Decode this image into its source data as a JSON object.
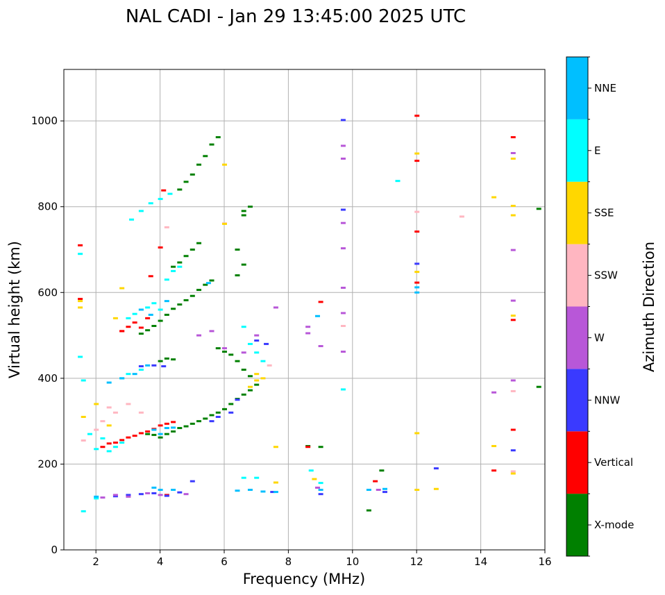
{
  "chart_data": {
    "type": "scatter",
    "title": "NAL CADI - Jan 29 13:45:00 2025 UTC",
    "xlabel": "Frequency (MHz)",
    "ylabel": "Virtual height (km)",
    "xlim": [
      1,
      16
    ],
    "ylim": [
      0,
      1120
    ],
    "xticks": [
      2,
      4,
      6,
      8,
      10,
      12,
      14,
      16
    ],
    "yticks": [
      0,
      200,
      400,
      600,
      800,
      1000
    ],
    "grid": true,
    "colorbar": {
      "title": "Azimuth Direction",
      "categories": [
        "X-mode",
        "Vertical",
        "NNW",
        "W",
        "SSW",
        "SSE",
        "E",
        "NNE"
      ],
      "colors": [
        "#008000",
        "#ff0000",
        "#3a3aff",
        "#b857d8",
        "#ffb6c1",
        "#ffd700",
        "#00ffff",
        "#00bfff"
      ]
    },
    "series": [
      {
        "name": "X-mode",
        "points": [
          [
            3.6,
            270
          ],
          [
            3.8,
            268
          ],
          [
            4.0,
            262
          ],
          [
            4.2,
            270
          ],
          [
            4.4,
            276
          ],
          [
            4.6,
            284
          ],
          [
            4.8,
            288
          ],
          [
            5.0,
            294
          ],
          [
            5.2,
            300
          ],
          [
            5.4,
            306
          ],
          [
            5.6,
            314
          ],
          [
            5.8,
            320
          ],
          [
            6.0,
            328
          ],
          [
            6.2,
            340
          ],
          [
            6.4,
            352
          ],
          [
            6.6,
            362
          ],
          [
            6.8,
            372
          ],
          [
            7.0,
            385
          ],
          [
            3.4,
            504
          ],
          [
            3.6,
            512
          ],
          [
            3.8,
            522
          ],
          [
            4.0,
            534
          ],
          [
            4.2,
            548
          ],
          [
            4.4,
            562
          ],
          [
            4.6,
            572
          ],
          [
            4.8,
            582
          ],
          [
            5.0,
            592
          ],
          [
            5.2,
            606
          ],
          [
            5.4,
            618
          ],
          [
            5.6,
            628
          ],
          [
            4.0,
            440
          ],
          [
            4.2,
            446
          ],
          [
            4.4,
            444
          ],
          [
            4.4,
            660
          ],
          [
            4.6,
            670
          ],
          [
            4.8,
            685
          ],
          [
            5.0,
            700
          ],
          [
            5.2,
            715
          ],
          [
            4.6,
            840
          ],
          [
            4.8,
            858
          ],
          [
            5.0,
            875
          ],
          [
            5.2,
            898
          ],
          [
            5.4,
            918
          ],
          [
            5.6,
            945
          ],
          [
            5.8,
            962
          ],
          [
            5.8,
            470
          ],
          [
            6.0,
            462
          ],
          [
            6.2,
            455
          ],
          [
            6.4,
            440
          ],
          [
            6.6,
            420
          ],
          [
            6.8,
            405
          ],
          [
            6.4,
            640
          ],
          [
            6.4,
            700
          ],
          [
            6.6,
            780
          ],
          [
            6.6,
            790
          ],
          [
            6.8,
            800
          ],
          [
            6.6,
            665
          ],
          [
            15.8,
            795
          ],
          [
            15.8,
            380
          ],
          [
            10.5,
            92
          ],
          [
            10.9,
            185
          ],
          [
            9.0,
            240
          ],
          [
            8.6,
            242
          ]
        ]
      },
      {
        "name": "Vertical",
        "points": [
          [
            2.2,
            240
          ],
          [
            2.4,
            248
          ],
          [
            2.6,
            250
          ],
          [
            2.8,
            256
          ],
          [
            3.0,
            262
          ],
          [
            3.2,
            266
          ],
          [
            3.4,
            272
          ],
          [
            3.6,
            276
          ],
          [
            3.8,
            282
          ],
          [
            4.0,
            290
          ],
          [
            4.2,
            294
          ],
          [
            4.4,
            298
          ],
          [
            2.8,
            510
          ],
          [
            3.0,
            520
          ],
          [
            3.2,
            530
          ],
          [
            3.4,
            518
          ],
          [
            3.6,
            540
          ],
          [
            1.5,
            585
          ],
          [
            1.5,
            710
          ],
          [
            3.7,
            638
          ],
          [
            4.0,
            705
          ],
          [
            4.1,
            838
          ],
          [
            8.6,
            240
          ],
          [
            9.0,
            578
          ],
          [
            12.0,
            1012
          ],
          [
            12.0,
            907
          ],
          [
            12.0,
            742
          ],
          [
            12.0,
            623
          ],
          [
            15.0,
            962
          ],
          [
            15.0,
            536
          ],
          [
            15.0,
            280
          ],
          [
            14.4,
            185
          ],
          [
            10.7,
            160
          ],
          [
            4.2,
            128
          ],
          [
            2.8,
            510
          ]
        ]
      },
      {
        "name": "NNW",
        "points": [
          [
            2.6,
            125
          ],
          [
            3.0,
            128
          ],
          [
            3.4,
            130
          ],
          [
            3.8,
            132
          ],
          [
            4.2,
            126
          ],
          [
            4.6,
            134
          ],
          [
            5.0,
            160
          ],
          [
            5.6,
            300
          ],
          [
            5.8,
            310
          ],
          [
            6.2,
            320
          ],
          [
            6.4,
            350
          ],
          [
            3.4,
            428
          ],
          [
            3.8,
            430
          ],
          [
            4.1,
            428
          ],
          [
            7.0,
            488
          ],
          [
            7.3,
            480
          ],
          [
            9.7,
            1002
          ],
          [
            9.7,
            793
          ],
          [
            12.0,
            667
          ],
          [
            12.6,
            190
          ],
          [
            15.0,
            232
          ],
          [
            9.0,
            130
          ],
          [
            11.0,
            135
          ],
          [
            7.5,
            135
          ]
        ]
      },
      {
        "name": "W",
        "points": [
          [
            2.2,
            122
          ],
          [
            2.6,
            128
          ],
          [
            3.0,
            124
          ],
          [
            3.6,
            132
          ],
          [
            4.0,
            128
          ],
          [
            4.8,
            130
          ],
          [
            5.2,
            500
          ],
          [
            5.6,
            510
          ],
          [
            6.0,
            470
          ],
          [
            6.6,
            460
          ],
          [
            7.0,
            500
          ],
          [
            7.6,
            565
          ],
          [
            8.6,
            505
          ],
          [
            8.6,
            520
          ],
          [
            9.0,
            475
          ],
          [
            9.7,
            942
          ],
          [
            9.7,
            912
          ],
          [
            9.7,
            762
          ],
          [
            9.7,
            703
          ],
          [
            9.7,
            611
          ],
          [
            9.7,
            552
          ],
          [
            9.7,
            462
          ],
          [
            15.0,
            925
          ],
          [
            15.0,
            699
          ],
          [
            15.0,
            581
          ],
          [
            15.0,
            395
          ],
          [
            14.4,
            367
          ],
          [
            8.9,
            145
          ],
          [
            10.8,
            140
          ]
        ]
      },
      {
        "name": "SSW",
        "points": [
          [
            1.6,
            255
          ],
          [
            2.0,
            280
          ],
          [
            2.2,
            300
          ],
          [
            2.4,
            332
          ],
          [
            2.6,
            320
          ],
          [
            3.0,
            340
          ],
          [
            3.4,
            320
          ],
          [
            4.2,
            752
          ],
          [
            6.0,
            761
          ],
          [
            7.4,
            430
          ],
          [
            9.7,
            522
          ],
          [
            12.0,
            788
          ],
          [
            13.4,
            777
          ],
          [
            15.0,
            370
          ],
          [
            15.0,
            183
          ]
        ]
      },
      {
        "name": "SSE",
        "points": [
          [
            1.5,
            565
          ],
          [
            1.5,
            580
          ],
          [
            1.6,
            310
          ],
          [
            2.0,
            340
          ],
          [
            2.4,
            290
          ],
          [
            2.6,
            540
          ],
          [
            2.8,
            610
          ],
          [
            6.8,
            380
          ],
          [
            7.0,
            395
          ],
          [
            7.0,
            410
          ],
          [
            7.2,
            400
          ],
          [
            7.6,
            240
          ],
          [
            6.0,
            760
          ],
          [
            6.0,
            898
          ],
          [
            8.8,
            165
          ],
          [
            12.0,
            924
          ],
          [
            12.0,
            648
          ],
          [
            12.0,
            272
          ],
          [
            12.0,
            140
          ],
          [
            12.6,
            142
          ],
          [
            14.4,
            822
          ],
          [
            15.0,
            912
          ],
          [
            15.0,
            802
          ],
          [
            15.0,
            780
          ],
          [
            15.0,
            546
          ],
          [
            15.0,
            178
          ],
          [
            14.4,
            242
          ],
          [
            7.6,
            157
          ]
        ]
      },
      {
        "name": "E",
        "points": [
          [
            1.5,
            690
          ],
          [
            1.5,
            450
          ],
          [
            1.6,
            395
          ],
          [
            1.8,
            270
          ],
          [
            2.0,
            235
          ],
          [
            2.2,
            260
          ],
          [
            2.4,
            230
          ],
          [
            2.6,
            240
          ],
          [
            2.8,
            250
          ],
          [
            3.0,
            540
          ],
          [
            3.2,
            550
          ],
          [
            3.4,
            560
          ],
          [
            3.6,
            565
          ],
          [
            3.8,
            575
          ],
          [
            4.0,
            560
          ],
          [
            4.2,
            630
          ],
          [
            4.4,
            650
          ],
          [
            4.6,
            660
          ],
          [
            3.1,
            770
          ],
          [
            3.4,
            790
          ],
          [
            3.7,
            808
          ],
          [
            4.0,
            818
          ],
          [
            4.3,
            830
          ],
          [
            2.8,
            400
          ],
          [
            3.0,
            410
          ],
          [
            3.4,
            420
          ],
          [
            6.6,
            520
          ],
          [
            7.0,
            460
          ],
          [
            7.2,
            440
          ],
          [
            6.8,
            480
          ],
          [
            1.6,
            90
          ],
          [
            2.0,
            120
          ],
          [
            6.6,
            168
          ],
          [
            7.0,
            168
          ],
          [
            8.7,
            185
          ],
          [
            9.0,
            156
          ],
          [
            11.4,
            860
          ],
          [
            9.7,
            374
          ]
        ]
      },
      {
        "name": "NNE",
        "points": [
          [
            2.4,
            390
          ],
          [
            2.8,
            400
          ],
          [
            3.2,
            410
          ],
          [
            3.6,
            430
          ],
          [
            3.8,
            280
          ],
          [
            4.0,
            270
          ],
          [
            4.2,
            284
          ],
          [
            4.4,
            285
          ],
          [
            3.4,
            560
          ],
          [
            3.7,
            548
          ],
          [
            4.2,
            580
          ],
          [
            5.5,
            622
          ],
          [
            3.8,
            145
          ],
          [
            4.0,
            140
          ],
          [
            4.4,
            140
          ],
          [
            6.4,
            138
          ],
          [
            6.8,
            140
          ],
          [
            7.2,
            136
          ],
          [
            7.6,
            135
          ],
          [
            8.9,
            545
          ],
          [
            9.0,
            140
          ],
          [
            10.5,
            140
          ],
          [
            11.0,
            142
          ],
          [
            12.0,
            600
          ],
          [
            12.0,
            612
          ],
          [
            2.0,
            124
          ]
        ]
      }
    ]
  }
}
